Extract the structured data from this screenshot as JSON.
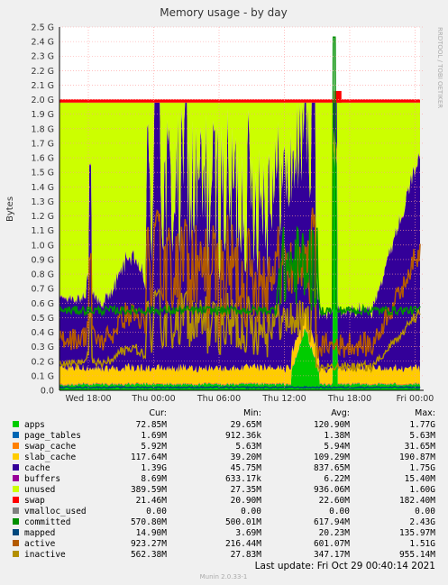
{
  "chart_data": {
    "type": "area",
    "title": "Memory usage - by day",
    "side_label": "RRDTOOL / TOBI OETIKER",
    "ylabel": "Bytes",
    "ylim": [
      0,
      2.5
    ],
    "y_unit": "G",
    "y_ticks": [
      "0.0",
      "0.1 G",
      "0.2 G",
      "0.3 G",
      "0.4 G",
      "0.5 G",
      "0.6 G",
      "0.7 G",
      "0.8 G",
      "0.9 G",
      "1.0 G",
      "1.1 G",
      "1.2 G",
      "1.3 G",
      "1.4 G",
      "1.5 G",
      "1.6 G",
      "1.7 G",
      "1.8 G",
      "1.9 G",
      "2.0 G",
      "2.1 G",
      "2.2 G",
      "2.3 G",
      "2.4 G",
      "2.5 G"
    ],
    "x_ticks": [
      "Wed 18:00",
      "Thu 00:00",
      "Thu 06:00",
      "Thu 12:00",
      "Thu 18:00",
      "Fri 00:00"
    ],
    "grid": true,
    "legend_headers": [
      "Cur:",
      "Min:",
      "Avg:",
      "Max:"
    ],
    "series": [
      {
        "name": "apps",
        "color": "#00cc00",
        "cur": "72.85M",
        "min": "29.65M",
        "avg": "120.90M",
        "max": "1.77G"
      },
      {
        "name": "page_tables",
        "color": "#0066b3",
        "cur": "1.69M",
        "min": "912.36k",
        "avg": "1.38M",
        "max": "5.63M"
      },
      {
        "name": "swap_cache",
        "color": "#ff8000",
        "cur": "5.92M",
        "min": "5.63M",
        "avg": "5.94M",
        "max": "31.65M"
      },
      {
        "name": "slab_cache",
        "color": "#ffcc00",
        "cur": "117.64M",
        "min": "39.20M",
        "avg": "109.29M",
        "max": "190.87M"
      },
      {
        "name": "cache",
        "color": "#330099",
        "cur": "1.39G",
        "min": "45.75M",
        "avg": "837.65M",
        "max": "1.75G"
      },
      {
        "name": "buffers",
        "color": "#990099",
        "cur": "8.69M",
        "min": "633.17k",
        "avg": "6.22M",
        "max": "15.40M"
      },
      {
        "name": "unused",
        "color": "#ccff00",
        "cur": "389.59M",
        "min": "27.35M",
        "avg": "936.06M",
        "max": "1.60G"
      },
      {
        "name": "swap",
        "color": "#ff0000",
        "cur": "21.46M",
        "min": "20.90M",
        "avg": "22.60M",
        "max": "182.40M"
      },
      {
        "name": "vmalloc_used",
        "color": "#808080",
        "cur": "0.00",
        "min": "0.00",
        "avg": "0.00",
        "max": "0.00"
      },
      {
        "name": "committed",
        "color": "#008f00",
        "cur": "570.80M",
        "min": "500.01M",
        "avg": "617.94M",
        "max": "2.43G"
      },
      {
        "name": "mapped",
        "color": "#00487d",
        "cur": "14.90M",
        "min": "3.69M",
        "avg": "20.23M",
        "max": "135.97M"
      },
      {
        "name": "active",
        "color": "#b35a00",
        "cur": "923.27M",
        "min": "216.44M",
        "avg": "601.07M",
        "max": "1.51G"
      },
      {
        "name": "inactive",
        "color": "#b38f00",
        "cur": "562.38M",
        "min": "27.83M",
        "avg": "347.17M",
        "max": "955.14M"
      }
    ],
    "last_update": "Last update:  Fri Oct 29 00:40:14 2021",
    "footer": "Munin 2.0.33-1"
  }
}
